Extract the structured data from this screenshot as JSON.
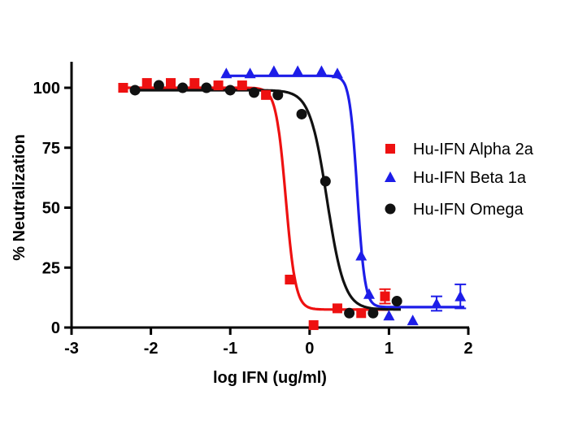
{
  "chart_data": {
    "type": "scatter",
    "title": "",
    "xlabel": "log IFN (ug/ml)",
    "ylabel": "% Neutralization",
    "xlim": [
      -3,
      2
    ],
    "ylim": [
      0,
      110
    ],
    "xticks": [
      -3,
      -2,
      -1,
      0,
      1,
      2
    ],
    "xtick_labels": [
      "-3",
      "-2",
      "-1",
      "0",
      "1",
      "2"
    ],
    "yticks": [
      0,
      25,
      50,
      75,
      100
    ],
    "ytick_labels": [
      "0",
      "25",
      "50",
      "75",
      "100"
    ],
    "grid": false,
    "legend_position": "right",
    "series": [
      {
        "name": "Hu-IFN Alpha 2a",
        "color": "#ee1111",
        "marker": "square",
        "points": [
          {
            "x": -2.35,
            "y": 100
          },
          {
            "x": -2.05,
            "y": 102
          },
          {
            "x": -1.75,
            "y": 102
          },
          {
            "x": -1.45,
            "y": 102
          },
          {
            "x": -1.15,
            "y": 101
          },
          {
            "x": -0.85,
            "y": 101
          },
          {
            "x": -0.55,
            "y": 97
          },
          {
            "x": -0.25,
            "y": 20
          },
          {
            "x": 0.05,
            "y": 1
          },
          {
            "x": 0.35,
            "y": 8
          },
          {
            "x": 0.65,
            "y": 6
          },
          {
            "x": 0.95,
            "y": 13
          }
        ],
        "error_bars": [
          {
            "x": 0.95,
            "low": 10,
            "high": 16
          }
        ],
        "fit": {
          "top": 100,
          "bottom": 7.5,
          "ec50_log": -0.3,
          "hill": 7
        }
      },
      {
        "name": "Hu-IFN Beta 1a",
        "color": "#1d1de8",
        "marker": "triangle",
        "points": [
          {
            "x": -1.05,
            "y": 106
          },
          {
            "x": -0.75,
            "y": 106
          },
          {
            "x": -0.45,
            "y": 107
          },
          {
            "x": -0.15,
            "y": 107
          },
          {
            "x": 0.15,
            "y": 107
          },
          {
            "x": 0.35,
            "y": 106
          },
          {
            "x": 0.65,
            "y": 30
          },
          {
            "x": 0.75,
            "y": 14
          },
          {
            "x": 1.0,
            "y": 5
          },
          {
            "x": 1.3,
            "y": 3
          },
          {
            "x": 1.6,
            "y": 10
          },
          {
            "x": 1.9,
            "y": 13
          }
        ],
        "error_bars": [
          {
            "x": 1.6,
            "low": 7,
            "high": 13
          },
          {
            "x": 1.9,
            "low": 8,
            "high": 18
          }
        ],
        "fit": {
          "top": 105,
          "bottom": 8.5,
          "ec50_log": 0.6,
          "hill": 9
        }
      },
      {
        "name": "Hu-IFN Omega",
        "color": "#111111",
        "marker": "circle",
        "points": [
          {
            "x": -2.2,
            "y": 99
          },
          {
            "x": -1.9,
            "y": 101
          },
          {
            "x": -1.6,
            "y": 100
          },
          {
            "x": -1.3,
            "y": 100
          },
          {
            "x": -1.0,
            "y": 99
          },
          {
            "x": -0.7,
            "y": 98
          },
          {
            "x": -0.4,
            "y": 97
          },
          {
            "x": -0.1,
            "y": 89
          },
          {
            "x": 0.2,
            "y": 61
          },
          {
            "x": 0.5,
            "y": 6
          },
          {
            "x": 0.8,
            "y": 6
          },
          {
            "x": 1.1,
            "y": 11
          }
        ],
        "fit": {
          "top": 99,
          "bottom": 7.5,
          "ec50_log": 0.22,
          "hill": 4
        }
      }
    ]
  }
}
